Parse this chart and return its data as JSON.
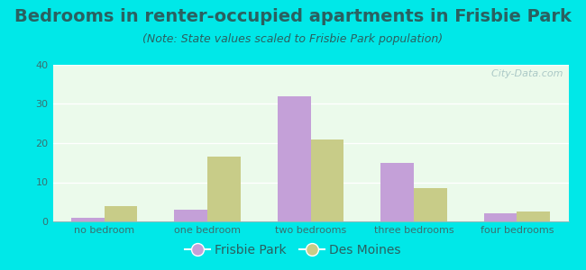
{
  "title": "Bedrooms in renter-occupied apartments in Frisbie Park",
  "subtitle": "(Note: State values scaled to Frisbie Park population)",
  "categories": [
    "no bedroom",
    "one bedroom",
    "two bedrooms",
    "three bedrooms",
    "four bedrooms"
  ],
  "frisbie_values": [
    1,
    3,
    32,
    15,
    2
  ],
  "desmoines_values": [
    4,
    16.5,
    21,
    8.5,
    2.5
  ],
  "frisbie_color": "#c4a0d8",
  "desmoines_color": "#c8cc88",
  "background_outer": "#00e8e8",
  "ylim": [
    0,
    40
  ],
  "yticks": [
    0,
    10,
    20,
    30,
    40
  ],
  "bar_width": 0.32,
  "title_fontsize": 14,
  "subtitle_fontsize": 9,
  "tick_fontsize": 8,
  "legend_fontsize": 10,
  "watermark": "  City-Data.com",
  "text_color": "#2a6060",
  "tick_color": "#3a7070"
}
